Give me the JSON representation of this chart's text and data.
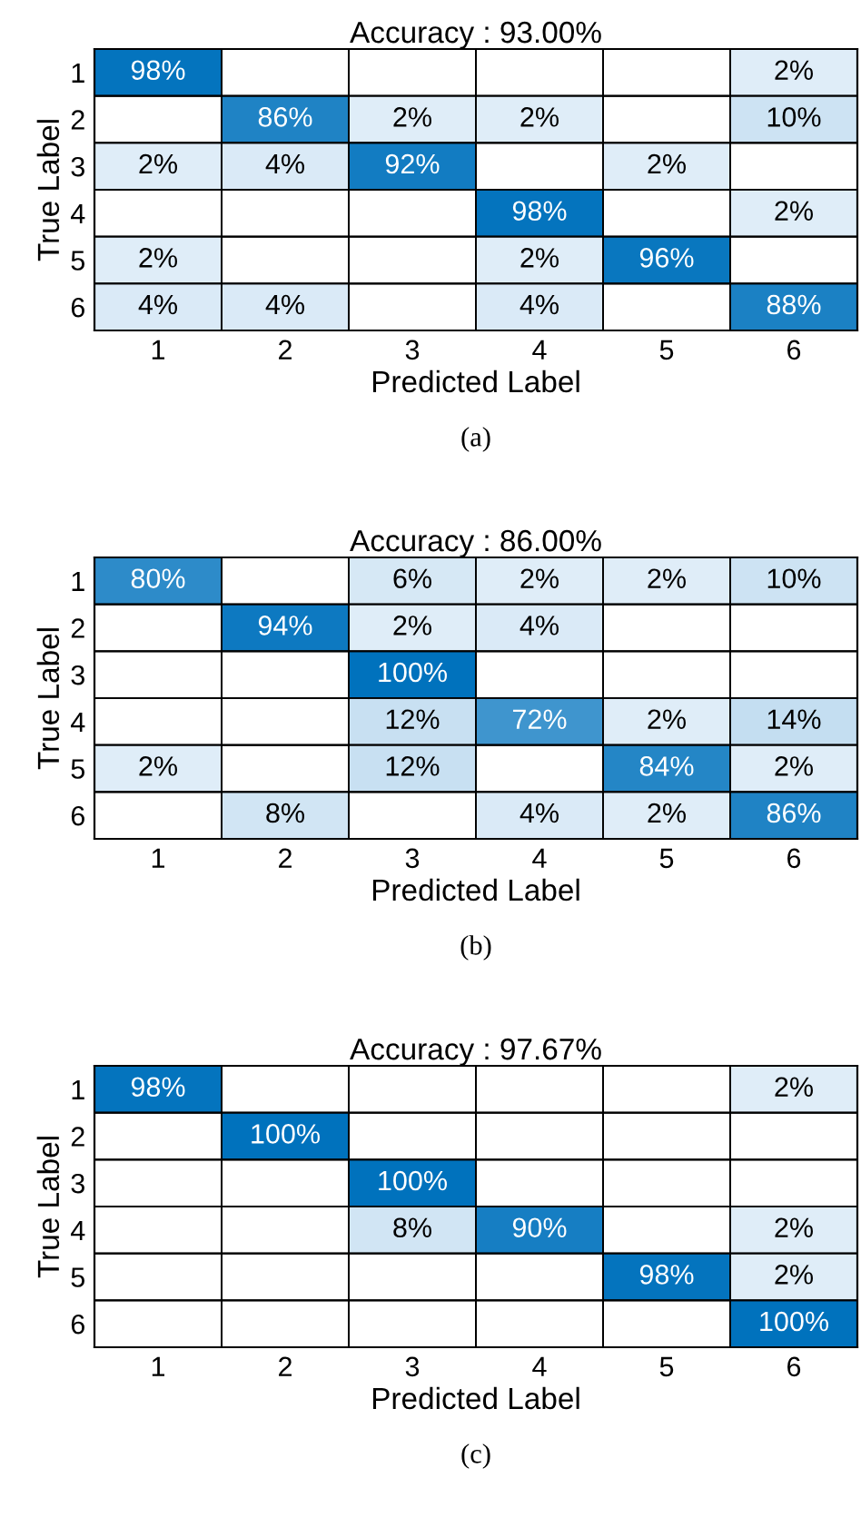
{
  "chart_data": [
    {
      "type": "heatmap",
      "title": "Accuracy : 93.00%",
      "xlabel": "Predicted Label",
      "ylabel": "True Label",
      "categories": [
        "1",
        "2",
        "3",
        "4",
        "5",
        "6"
      ],
      "y_categories": [
        "1",
        "2",
        "3",
        "4",
        "5",
        "6"
      ],
      "grid": true,
      "annotations": [
        "(a)"
      ],
      "cells": [
        [
          98,
          null,
          null,
          null,
          null,
          2
        ],
        [
          null,
          86,
          2,
          2,
          null,
          10
        ],
        [
          2,
          4,
          92,
          null,
          2,
          null
        ],
        [
          null,
          null,
          null,
          98,
          null,
          2
        ],
        [
          2,
          null,
          null,
          2,
          96,
          null
        ],
        [
          4,
          4,
          null,
          4,
          null,
          88
        ]
      ],
      "cell_labels": [
        [
          "98%",
          null,
          null,
          null,
          null,
          "2%"
        ],
        [
          null,
          "86%",
          "2%",
          "2%",
          null,
          "10%"
        ],
        [
          "2%",
          "4%",
          "92%",
          null,
          "2%",
          null
        ],
        [
          null,
          null,
          null,
          "98%",
          null,
          "2%"
        ],
        [
          "2%",
          null,
          null,
          "2%",
          "96%",
          null
        ],
        [
          "4%",
          "4%",
          null,
          "4%",
          null,
          "88%"
        ]
      ]
    },
    {
      "type": "heatmap",
      "title": "Accuracy : 86.00%",
      "xlabel": "Predicted Label",
      "ylabel": "True Label",
      "categories": [
        "1",
        "2",
        "3",
        "4",
        "5",
        "6"
      ],
      "y_categories": [
        "1",
        "2",
        "3",
        "4",
        "5",
        "6"
      ],
      "grid": true,
      "annotations": [
        "(b)"
      ],
      "cells": [
        [
          80,
          null,
          6,
          2,
          2,
          10
        ],
        [
          null,
          94,
          2,
          4,
          null,
          null
        ],
        [
          null,
          null,
          100,
          null,
          null,
          null
        ],
        [
          null,
          null,
          12,
          72,
          2,
          14
        ],
        [
          2,
          null,
          12,
          null,
          84,
          2
        ],
        [
          null,
          8,
          null,
          4,
          2,
          86
        ]
      ],
      "cell_labels": [
        [
          "80%",
          null,
          "6%",
          "2%",
          "2%",
          "10%"
        ],
        [
          null,
          "94%",
          "2%",
          "4%",
          null,
          null
        ],
        [
          null,
          null,
          "100%",
          null,
          null,
          null
        ],
        [
          null,
          null,
          "12%",
          "72%",
          "2%",
          "14%"
        ],
        [
          "2%",
          null,
          "12%",
          null,
          "84%",
          "2%"
        ],
        [
          null,
          "8%",
          null,
          "4%",
          "2%",
          "86%"
        ]
      ]
    },
    {
      "type": "heatmap",
      "title": "Accuracy : 97.67%",
      "xlabel": "Predicted Label",
      "ylabel": "True Label",
      "categories": [
        "1",
        "2",
        "3",
        "4",
        "5",
        "6"
      ],
      "y_categories": [
        "1",
        "2",
        "3",
        "4",
        "5",
        "6"
      ],
      "grid": true,
      "annotations": [
        "(c)"
      ],
      "cells": [
        [
          98,
          null,
          null,
          null,
          null,
          2
        ],
        [
          null,
          100,
          null,
          null,
          null,
          null
        ],
        [
          null,
          null,
          100,
          null,
          null,
          null
        ],
        [
          null,
          null,
          8,
          90,
          null,
          2
        ],
        [
          null,
          null,
          null,
          null,
          98,
          2
        ],
        [
          null,
          null,
          null,
          null,
          null,
          100
        ]
      ],
      "cell_labels": [
        [
          "98%",
          null,
          null,
          null,
          null,
          "2%"
        ],
        [
          null,
          "100%",
          null,
          null,
          null,
          null
        ],
        [
          null,
          null,
          "100%",
          null,
          null,
          null
        ],
        [
          null,
          null,
          "8%",
          "90%",
          null,
          "2%"
        ],
        [
          null,
          null,
          null,
          null,
          "98%",
          "2%"
        ],
        [
          null,
          null,
          null,
          null,
          null,
          "100%"
        ]
      ]
    }
  ]
}
